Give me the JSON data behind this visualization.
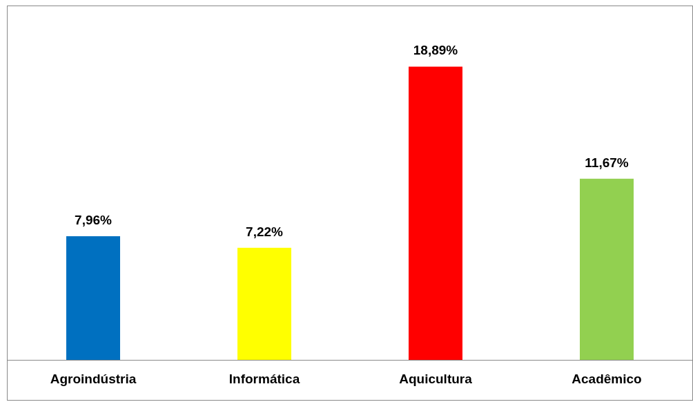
{
  "chart_data": {
    "type": "bar",
    "categories": [
      "Agroindústria",
      "Informática",
      "Aquicultura",
      "Acadêmico"
    ],
    "values": [
      7.96,
      7.22,
      18.89,
      11.67
    ],
    "colors": [
      "#0070c0",
      "#ffff00",
      "#ff0000",
      "#92d050"
    ],
    "value_labels": [
      "7,96%",
      "7,22%",
      "18,89%",
      "11,67%"
    ]
  }
}
